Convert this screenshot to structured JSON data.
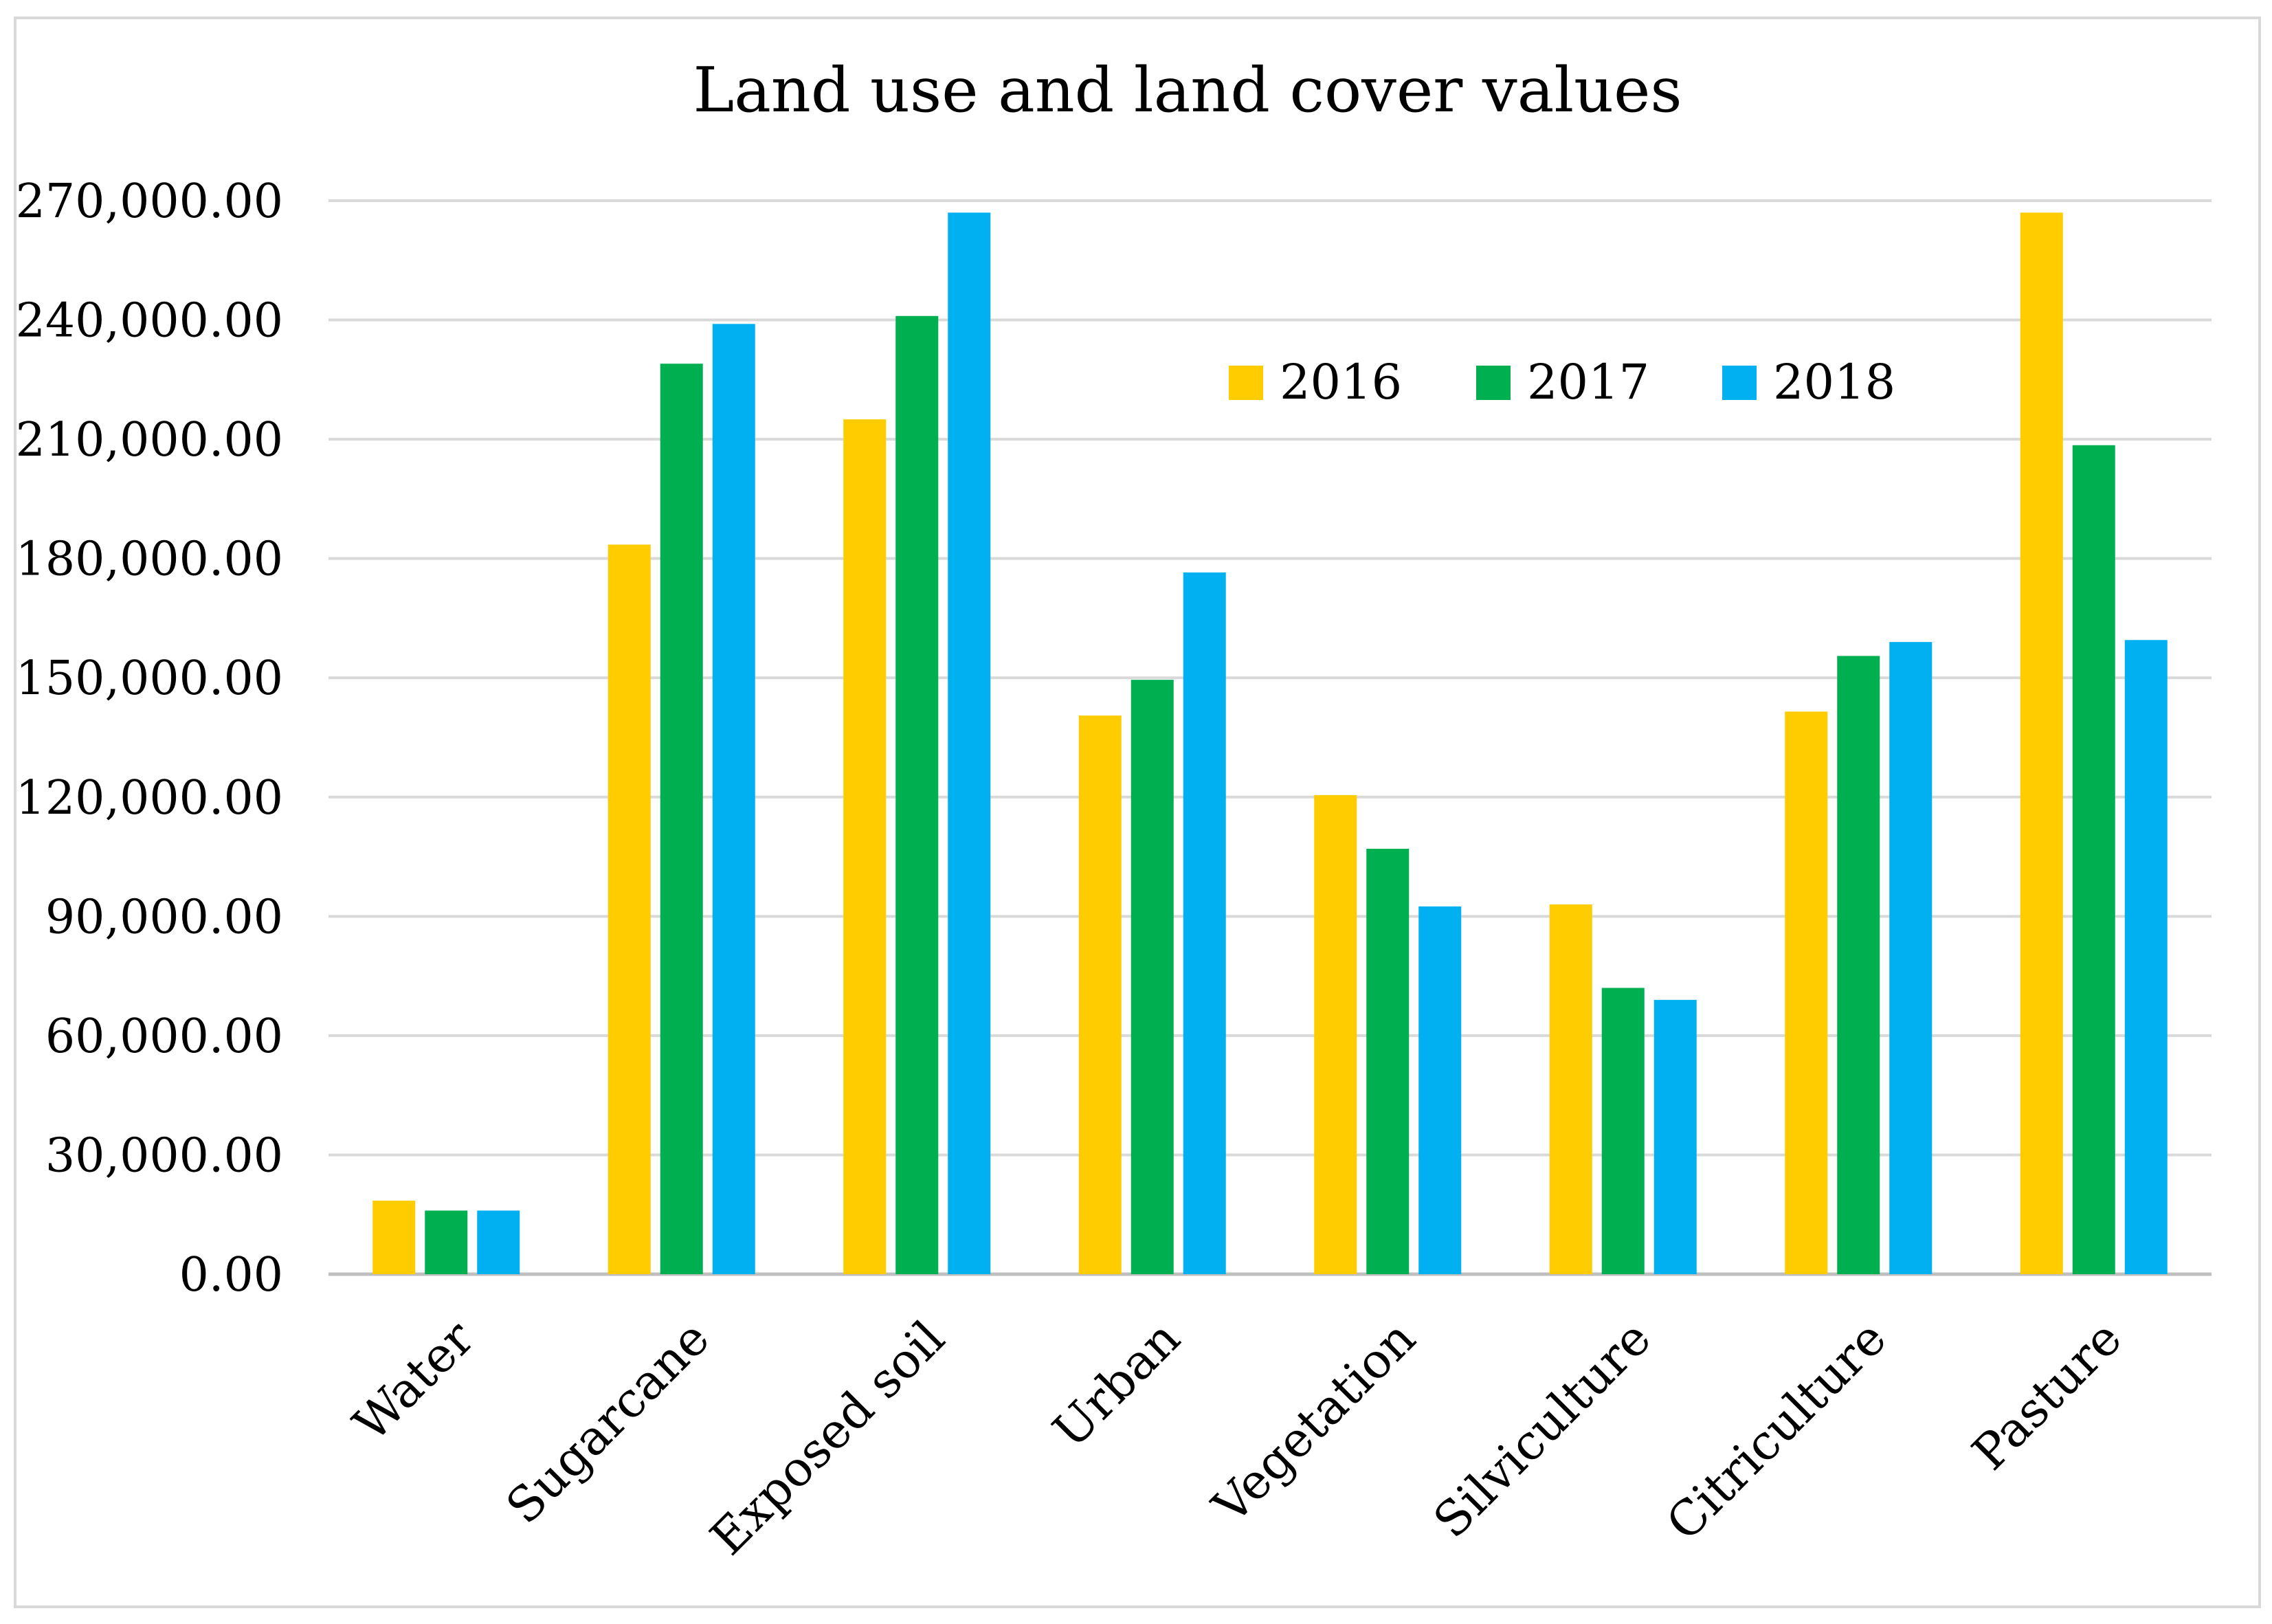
{
  "chart_data": {
    "type": "bar",
    "title": "Land use and land cover values",
    "xlabel": "",
    "ylabel": "",
    "ylim": [
      0,
      270000
    ],
    "yticks": [
      0,
      30000,
      60000,
      90000,
      120000,
      150000,
      180000,
      210000,
      240000,
      270000
    ],
    "ytick_labels": [
      "0.00",
      "30,000.00",
      "60,000.00",
      "90,000.00",
      "120,000.00",
      "150,000.00",
      "180,000.00",
      "210,000.00",
      "240,000.00",
      "270,000.00"
    ],
    "grid": true,
    "legend_position": "top-center",
    "categories": [
      "Water",
      "Sugarcane",
      "Exposed soil",
      "Urban",
      "Vegetation",
      "Silviculture",
      "Citriculture",
      "Pasture"
    ],
    "series": [
      {
        "name": "2016",
        "color": "#ffcc00",
        "values": [
          18500,
          183500,
          215000,
          140500,
          120500,
          93000,
          141500,
          267000
        ]
      },
      {
        "name": "2017",
        "color": "#00b050",
        "values": [
          16000,
          229000,
          241000,
          149500,
          107000,
          72000,
          155500,
          208500
        ]
      },
      {
        "name": "2018",
        "color": "#00b0f0",
        "values": [
          16000,
          239000,
          267000,
          176500,
          92500,
          69000,
          159000,
          159500
        ]
      }
    ]
  }
}
